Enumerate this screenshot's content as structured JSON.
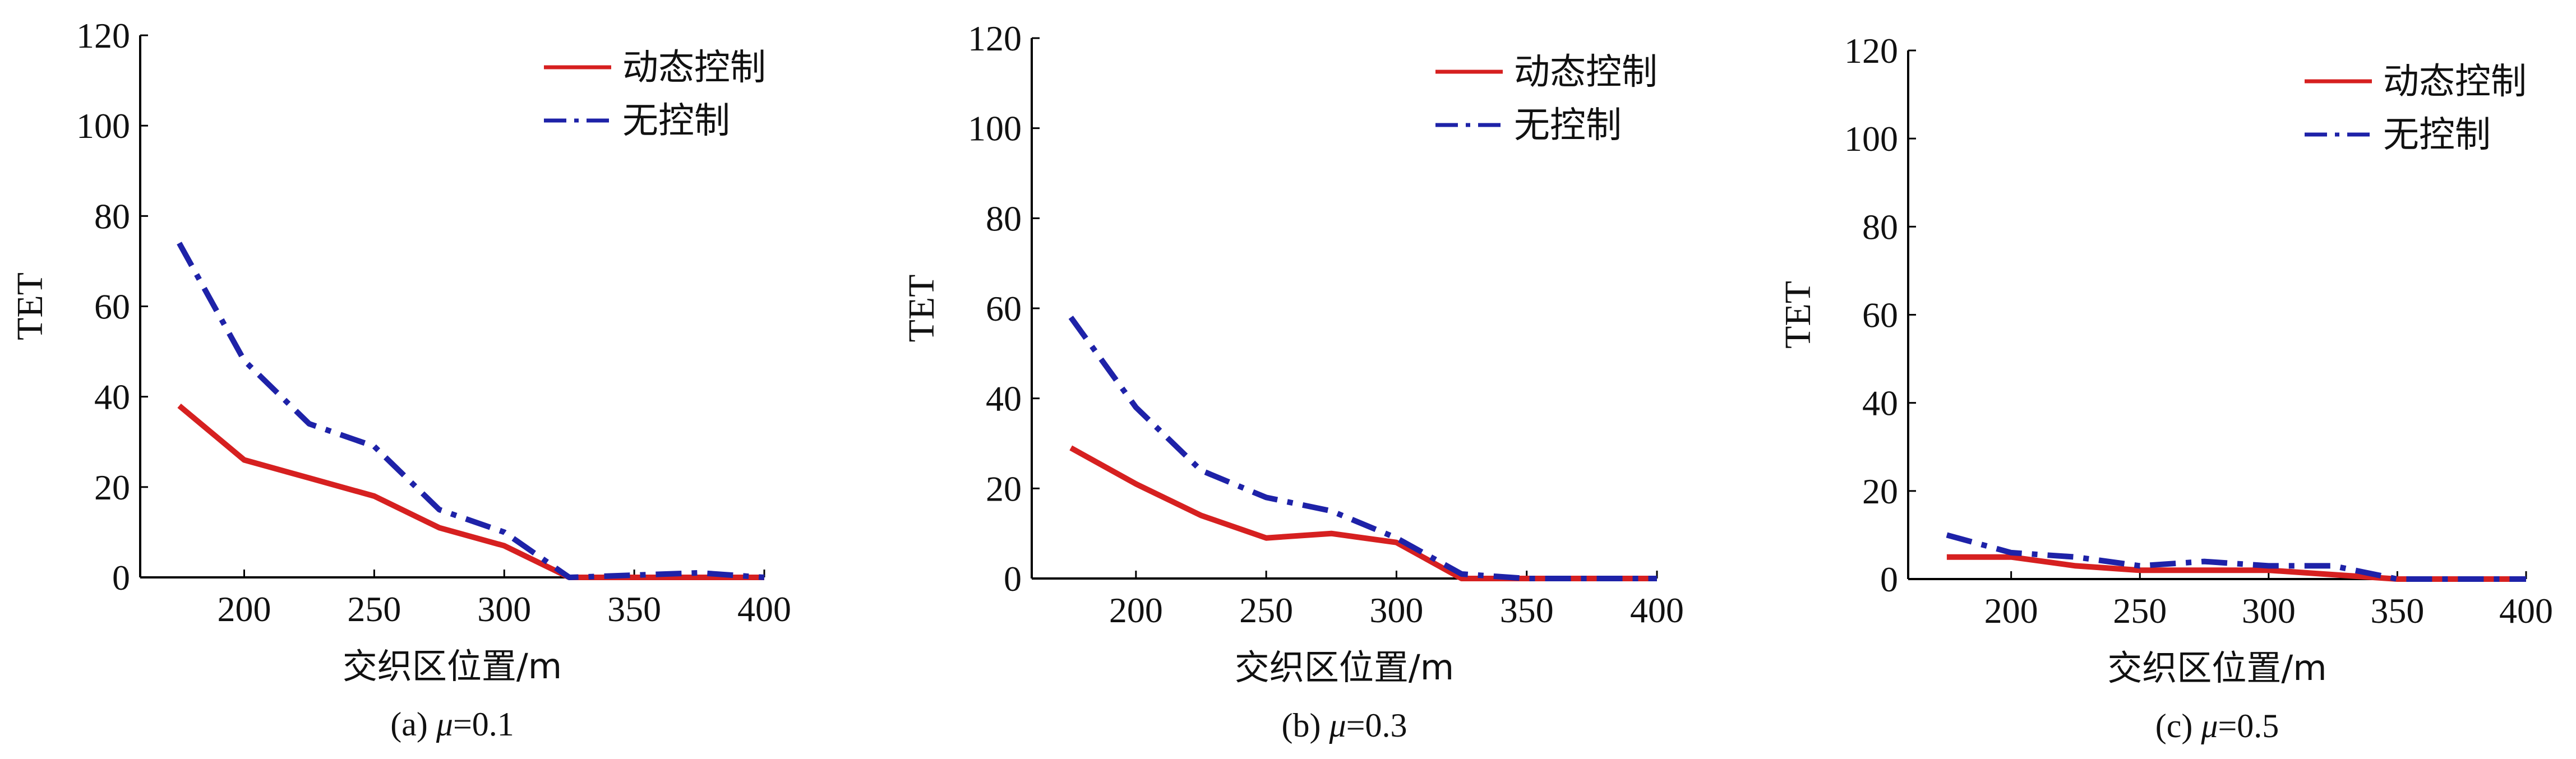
{
  "chart_data": [
    {
      "type": "line",
      "caption": "(a) μ=0.1",
      "caption_prefix": "(a)",
      "caption_symbol": "μ",
      "caption_value": "=0.1",
      "xlabel": "交织区位置/m",
      "ylabel": "TET",
      "xlim": [
        160,
        400
      ],
      "ylim": [
        0,
        120
      ],
      "xticks": [
        200,
        250,
        300,
        350,
        400
      ],
      "yticks": [
        0,
        20,
        40,
        60,
        80,
        100,
        120
      ],
      "grid": false,
      "legend_position": "top-right",
      "series": [
        {
          "name": "动态控制",
          "color": "#d62020",
          "style": "solid",
          "x": [
            175,
            200,
            225,
            250,
            275,
            300,
            325,
            350,
            375,
            400
          ],
          "y": [
            38,
            26,
            22,
            18,
            11,
            7,
            0,
            0,
            0,
            0
          ]
        },
        {
          "name": "无控制",
          "color": "#1e22a8",
          "style": "dashdot",
          "x": [
            175,
            200,
            225,
            250,
            275,
            300,
            325,
            350,
            375,
            400
          ],
          "y": [
            74,
            48,
            34,
            29,
            15,
            10,
            0,
            0.5,
            1,
            0
          ]
        }
      ]
    },
    {
      "type": "line",
      "caption": "(b) μ=0.3",
      "caption_prefix": "(b)",
      "caption_symbol": "μ",
      "caption_value": "=0.3",
      "xlabel": "交织区位置/m",
      "ylabel": "TET",
      "xlim": [
        160,
        400
      ],
      "ylim": [
        0,
        120
      ],
      "xticks": [
        200,
        250,
        300,
        350,
        400
      ],
      "yticks": [
        0,
        20,
        40,
        60,
        80,
        100,
        120
      ],
      "grid": false,
      "legend_position": "top-right",
      "series": [
        {
          "name": "动态控制",
          "color": "#d62020",
          "style": "solid",
          "x": [
            175,
            200,
            225,
            250,
            275,
            300,
            325,
            350,
            375,
            400
          ],
          "y": [
            29,
            21,
            14,
            9,
            10,
            8,
            0,
            0,
            0,
            0
          ]
        },
        {
          "name": "无控制",
          "color": "#1e22a8",
          "style": "dashdot",
          "x": [
            175,
            200,
            225,
            250,
            275,
            300,
            325,
            350,
            375,
            400
          ],
          "y": [
            58,
            38,
            24,
            18,
            15,
            9,
            1,
            0,
            0,
            0
          ]
        }
      ]
    },
    {
      "type": "line",
      "caption": "(c) μ=0.5",
      "caption_prefix": "(c)",
      "caption_symbol": "μ",
      "caption_value": "=0.5",
      "xlabel": "交织区位置/m",
      "ylabel": "TET",
      "xlim": [
        160,
        400
      ],
      "ylim": [
        0,
        120
      ],
      "xticks": [
        200,
        250,
        300,
        350,
        400
      ],
      "yticks": [
        0,
        20,
        40,
        60,
        80,
        100,
        120
      ],
      "grid": false,
      "legend_position": "top-right",
      "series": [
        {
          "name": "动态控制",
          "color": "#d62020",
          "style": "solid",
          "x": [
            175,
            200,
            225,
            250,
            275,
            300,
            325,
            350,
            375,
            400
          ],
          "y": [
            5,
            5,
            3,
            2,
            2,
            2,
            1,
            0,
            0,
            0
          ]
        },
        {
          "name": "无控制",
          "color": "#1e22a8",
          "style": "dashdot",
          "x": [
            175,
            200,
            225,
            250,
            275,
            300,
            325,
            350,
            375,
            400
          ],
          "y": [
            10,
            6,
            5,
            3,
            4,
            3,
            3,
            0,
            0,
            0
          ]
        }
      ]
    }
  ]
}
